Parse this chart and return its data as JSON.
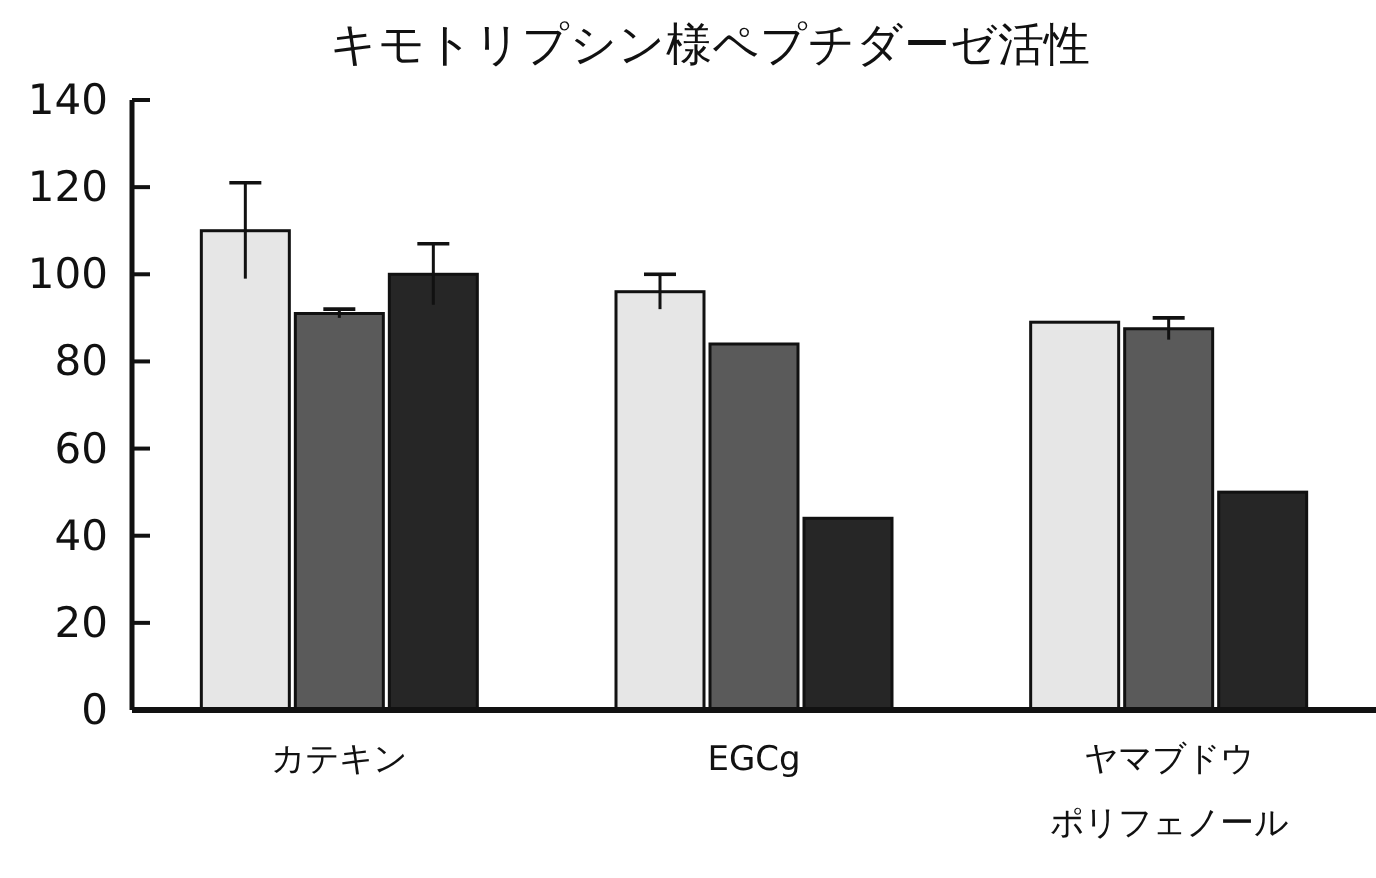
{
  "chart_data": {
    "type": "bar",
    "title": "キモトリプシン様ペプチダーゼ活性",
    "categories": [
      "カテキン",
      "EGCg",
      "ヤマブドウポリフェノール"
    ],
    "series": [
      {
        "color": "#e6e6e6",
        "values": [
          110,
          96,
          89
        ],
        "errors": [
          11,
          4,
          null
        ]
      },
      {
        "color": "#5a5a5a",
        "values": [
          91,
          84,
          87.5
        ],
        "errors": [
          1,
          null,
          2.5
        ]
      },
      {
        "color": "#262626",
        "values": [
          100,
          44,
          50
        ],
        "errors": [
          7,
          null,
          null
        ]
      }
    ],
    "ylim": [
      0,
      140
    ],
    "yticks": [
      0,
      20,
      40,
      60,
      80,
      100,
      120,
      140
    ],
    "grid": false
  }
}
